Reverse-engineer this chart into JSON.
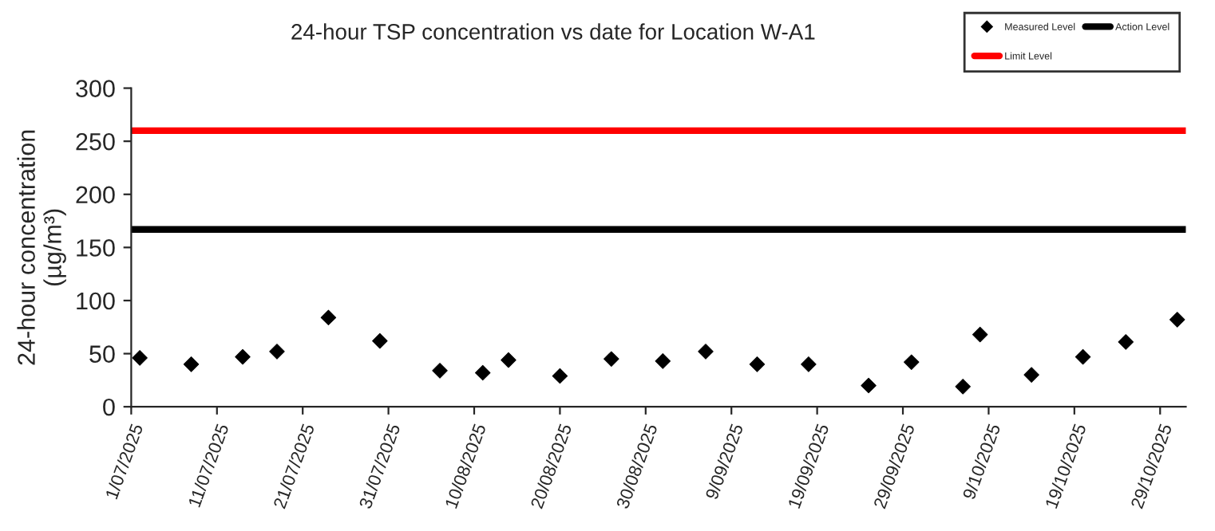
{
  "chart_data": {
    "type": "scatter",
    "title": "24-hour TSP concentration vs date for Location W-A1",
    "ylabel": "24-hour concentration\n(µg/m³)",
    "x": [
      "2025-07-02",
      "2025-07-08",
      "2025-07-14",
      "2025-07-18",
      "2025-07-24",
      "2025-07-30",
      "2025-08-06",
      "2025-08-11",
      "2025-08-14",
      "2025-08-20",
      "2025-08-26",
      "2025-09-01",
      "2025-09-06",
      "2025-09-12",
      "2025-09-18",
      "2025-09-25",
      "2025-09-30",
      "2025-10-06",
      "2025-10-08",
      "2025-10-14",
      "2025-10-20",
      "2025-10-25",
      "2025-10-31"
    ],
    "series": [
      {
        "name": "Measured Level",
        "color": "#000000",
        "values": [
          46,
          40,
          47,
          52,
          84,
          62,
          34,
          32,
          44,
          29,
          45,
          43,
          52,
          40,
          40,
          20,
          42,
          19,
          68,
          30,
          47,
          61,
          82
        ]
      }
    ],
    "marker": "diamond",
    "ref_lines": [
      {
        "axis": "y",
        "value": 260,
        "label": "Limit Level",
        "color": "#ff0000",
        "line_style": "solid"
      },
      {
        "axis": "y",
        "value": 167,
        "label": "Action Level",
        "color": "#000000",
        "line_style": "solid"
      }
    ],
    "xlim": [
      "2025-07-01",
      "2025-11-01"
    ],
    "xticks": [
      {
        "value": "2025-07-01",
        "label": "1/07/2025"
      },
      {
        "value": "2025-07-11",
        "label": "11/07/2025"
      },
      {
        "value": "2025-07-21",
        "label": "21/07/2025"
      },
      {
        "value": "2025-07-31",
        "label": "31/07/2025"
      },
      {
        "value": "2025-08-10",
        "label": "10/08/2025"
      },
      {
        "value": "2025-08-20",
        "label": "20/08/2025"
      },
      {
        "value": "2025-08-30",
        "label": "30/08/2025"
      },
      {
        "value": "2025-09-09",
        "label": "9/09/2025"
      },
      {
        "value": "2025-09-19",
        "label": "19/09/2025"
      },
      {
        "value": "2025-09-29",
        "label": "29/09/2025"
      },
      {
        "value": "2025-10-09",
        "label": "9/10/2025"
      },
      {
        "value": "2025-10-19",
        "label": "19/10/2025"
      },
      {
        "value": "2025-10-29",
        "label": "29/10/2025"
      }
    ],
    "ylim": [
      0,
      300
    ],
    "yticks": [
      0,
      50,
      100,
      150,
      200,
      250,
      300
    ],
    "grid": false,
    "legend": "top right"
  }
}
